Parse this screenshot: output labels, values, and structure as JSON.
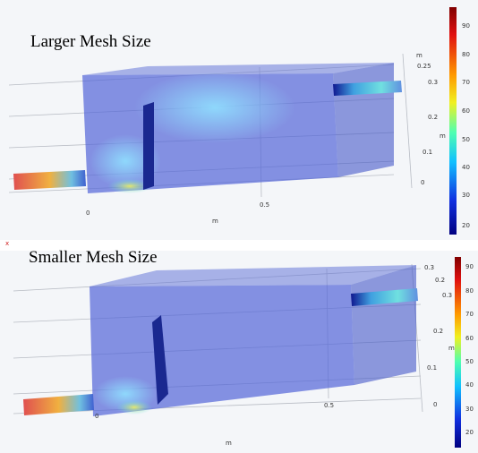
{
  "panels": [
    {
      "title": "Larger Mesh Size",
      "colorbar_ticks": [
        "90",
        "80",
        "70",
        "60",
        "50",
        "40",
        "30",
        "20"
      ],
      "axis_labels": [
        "m",
        "0.25",
        "0.3",
        "0.2",
        "m",
        "0.1",
        "0",
        "0",
        "0.5",
        "m"
      ]
    },
    {
      "title": "Smaller Mesh Size",
      "colorbar_ticks": [
        "90",
        "80",
        "70",
        "60",
        "50",
        "40",
        "30",
        "20"
      ],
      "axis_labels": [
        "0.3",
        "0.2",
        "0.3",
        "0.2",
        "m",
        "0.1",
        "0",
        "0",
        "0.5",
        "m"
      ]
    }
  ],
  "marker": "x"
}
